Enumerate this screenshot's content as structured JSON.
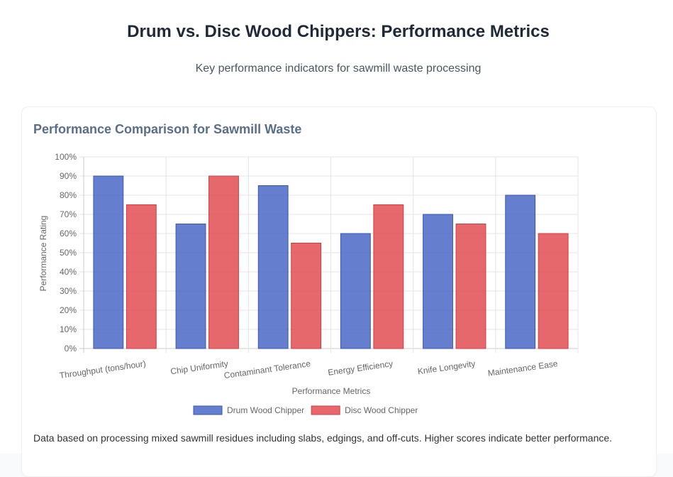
{
  "header": {
    "title": "Drum vs. Disc Wood Chippers: Performance Metrics",
    "subtitle": "Key performance indicators for sawmill waste processing"
  },
  "card": {
    "title": "Performance Comparison for Sawmill Waste",
    "note": "Data based on processing mixed sawmill residues including slabs, edgings, and off-cuts. Higher scores indicate better performance."
  },
  "chart_data": {
    "type": "bar",
    "title": "Performance Comparison for Sawmill Waste",
    "xlabel": "Performance Metrics",
    "ylabel": "Performance Rating",
    "categories": [
      "Throughput (tons/hour)",
      "Chip Uniformity",
      "Contaminant Tolerance",
      "Energy Efficiency",
      "Knife Longevity",
      "Maintenance Ease"
    ],
    "series": [
      {
        "name": "Drum Wood Chipper",
        "values": [
          90,
          65,
          85,
          60,
          70,
          80
        ],
        "color": "#4a67c4",
        "border": "#3a56b8"
      },
      {
        "name": "Disc Wood Chipper",
        "values": [
          75,
          90,
          55,
          75,
          65,
          60
        ],
        "color": "#e24e52",
        "border": "#d63a3f"
      }
    ],
    "ylim": [
      0,
      100
    ],
    "yticks": [
      0,
      10,
      20,
      30,
      40,
      50,
      60,
      70,
      80,
      90,
      100
    ],
    "ytick_suffix": "%",
    "grid": true,
    "legend_position": "bottom"
  }
}
